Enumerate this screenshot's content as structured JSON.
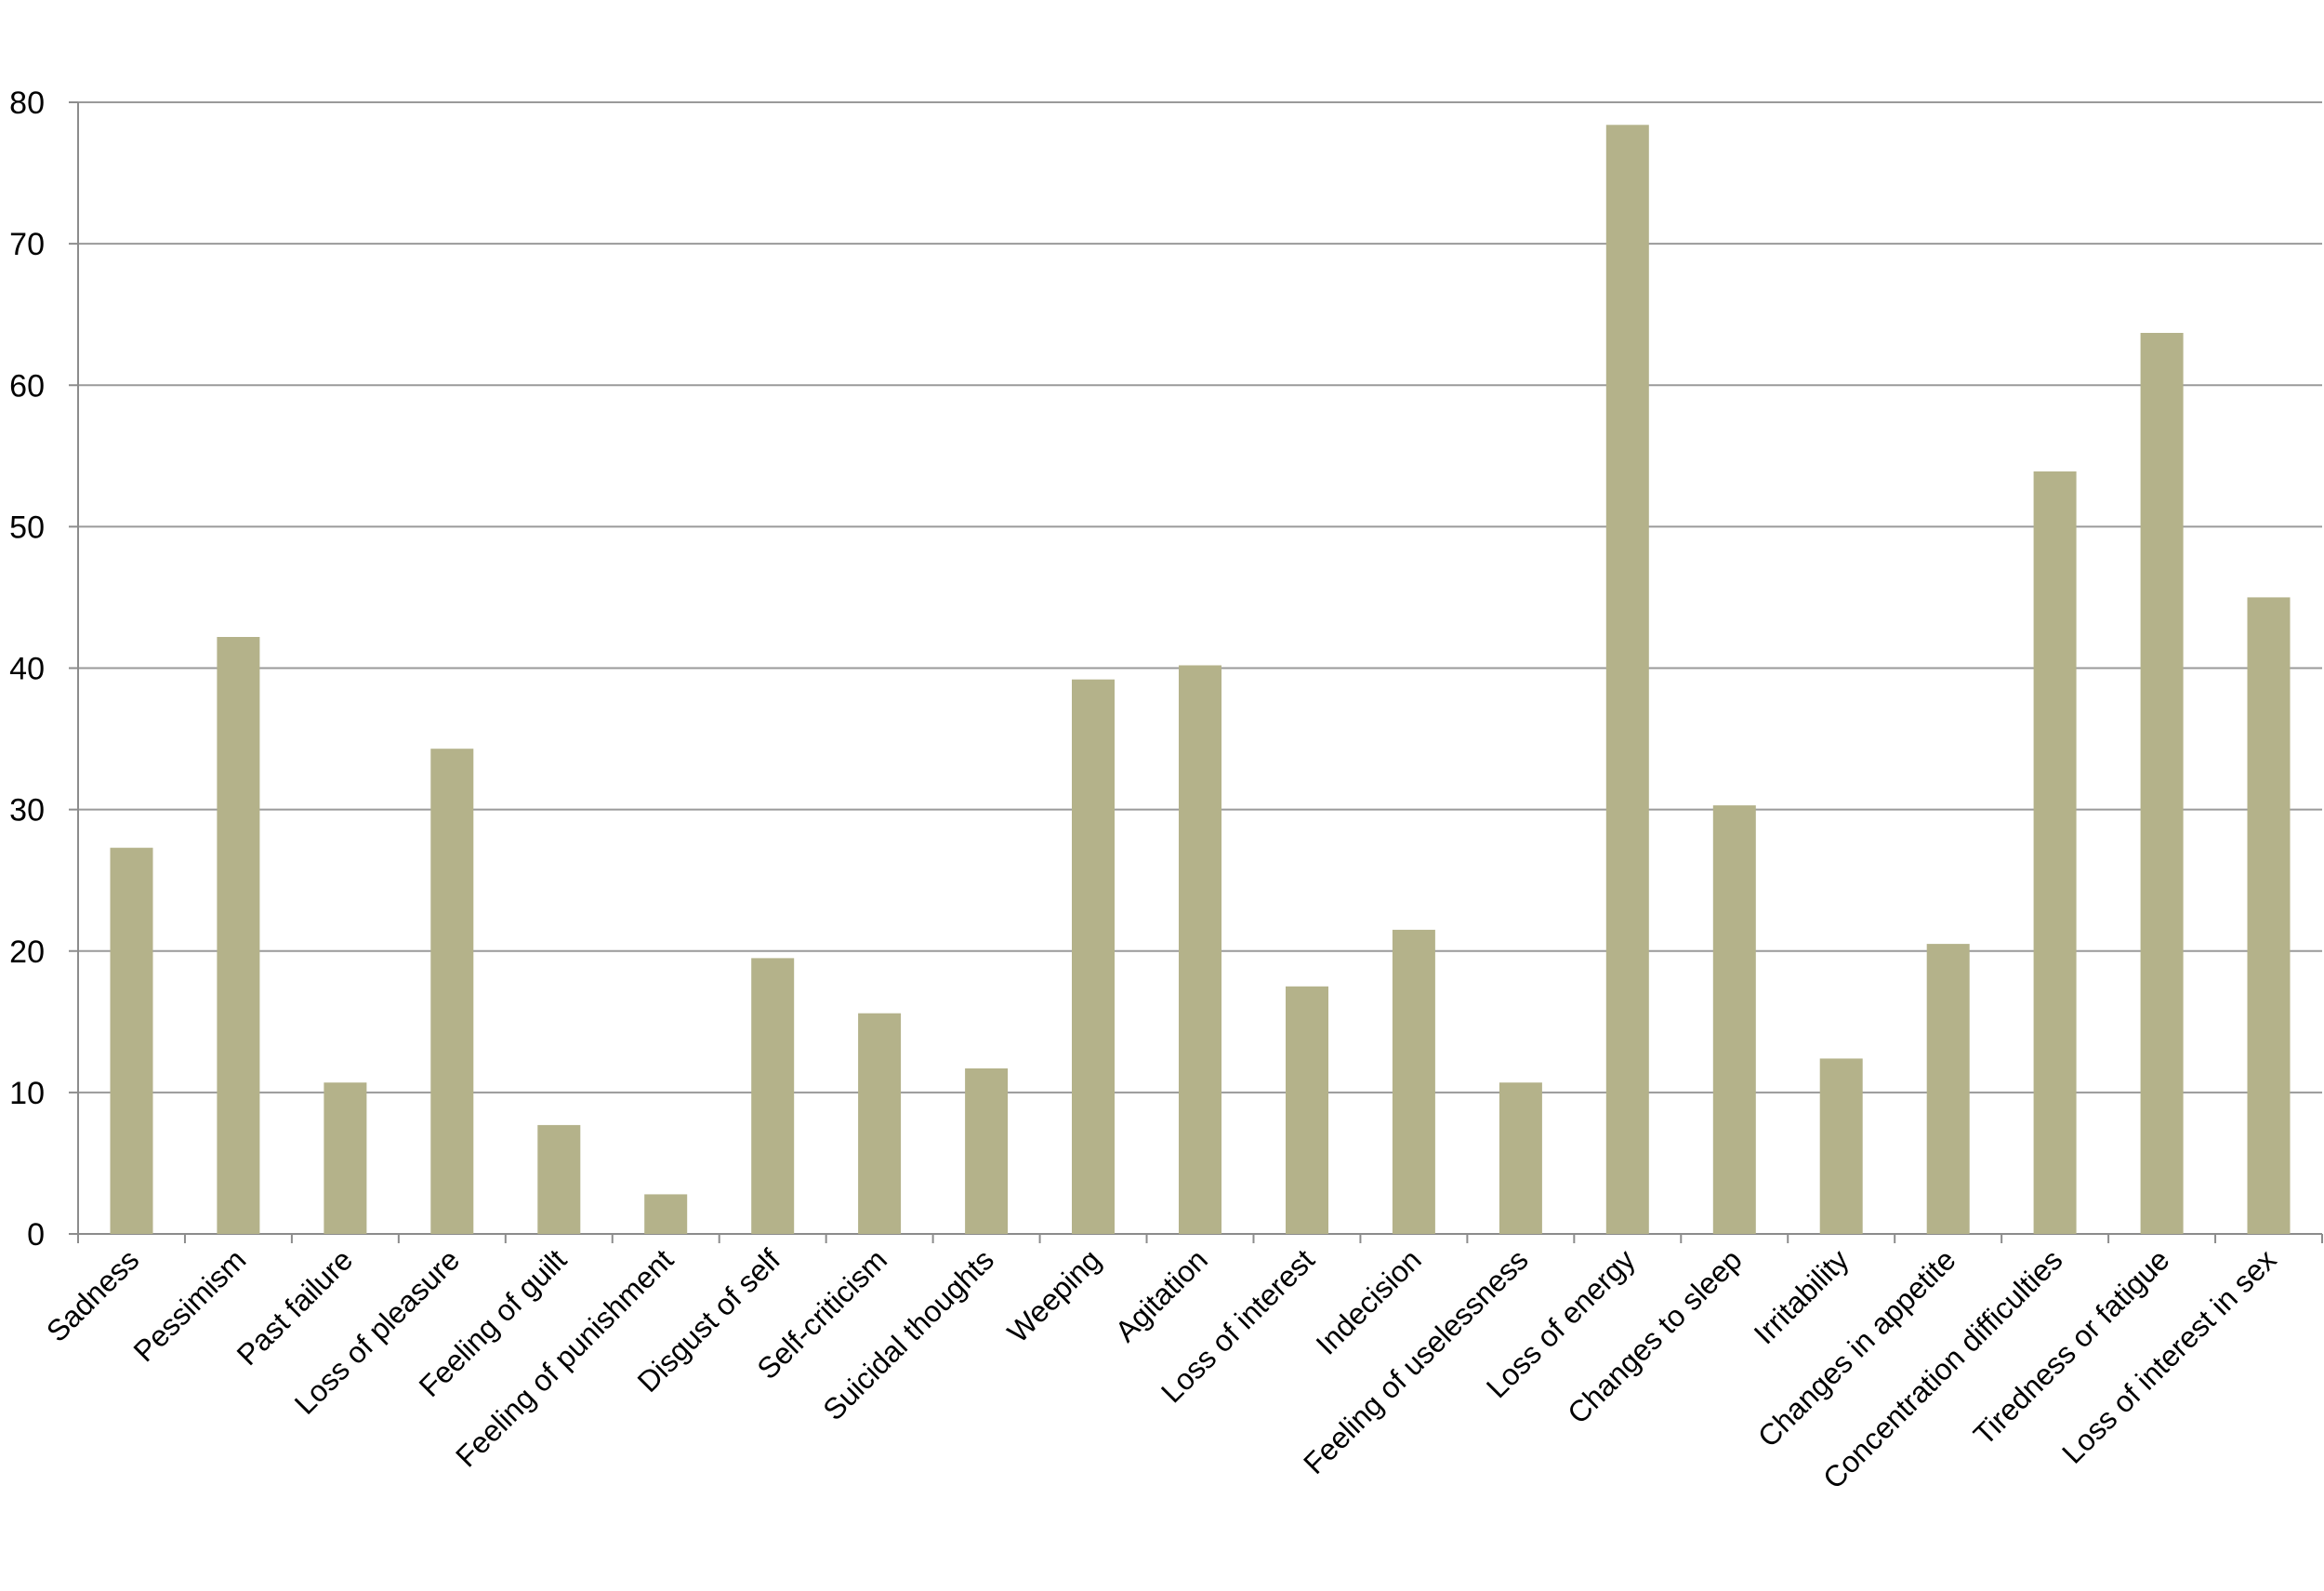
{
  "chart_data": {
    "type": "bar",
    "title": "",
    "xlabel": "",
    "ylabel": "",
    "ylim": [
      0,
      80
    ],
    "yticks": [
      0,
      10,
      20,
      30,
      40,
      50,
      60,
      70,
      80
    ],
    "grid": true,
    "categories": [
      "Sadness",
      "Pessimism",
      "Past failure",
      "Loss of pleasure",
      "Feeling of guilt",
      "Feeling of punishment",
      "Disgust of self",
      "Self-criticism",
      "Suicidal thoughts",
      "Weeping",
      "Agitation",
      "Loss of interest",
      "Indecision",
      "Feeling of uselessness",
      "Loss of energy",
      "Changes to sleep",
      "Irritability",
      "Changes in appetite",
      "Concentration difficulties",
      "Tiredness or fatigue",
      "Loss of interest in sex"
    ],
    "values": [
      27.3,
      42.2,
      10.7,
      34.3,
      7.7,
      2.8,
      19.5,
      15.6,
      11.7,
      39.2,
      40.2,
      17.5,
      21.5,
      10.7,
      78.4,
      30.3,
      12.4,
      20.5,
      53.9,
      63.7,
      45.0
    ],
    "colors": {
      "bar": "#b4b28a",
      "grid": "#9a9a9a",
      "axis": "#8c8c8c"
    }
  }
}
